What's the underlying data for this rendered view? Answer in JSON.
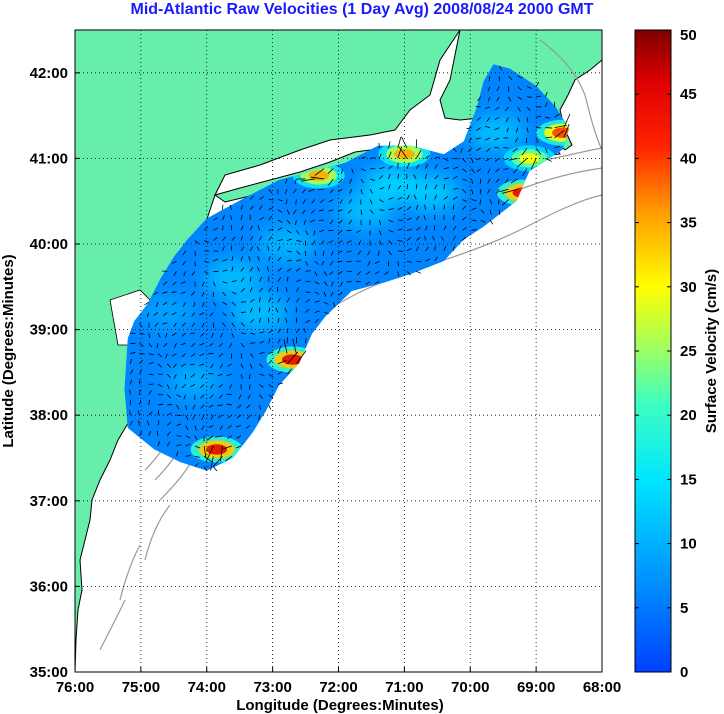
{
  "title": "Mid-Atlantic Raw Velocities (1 Day Avg) 2008/08/24 2000 GMT",
  "xlabel": "Longitude (Degrees:Minutes)",
  "ylabel": "Latitude (Degrees:Minutes)",
  "x_ticks": [
    {
      "lon": -76,
      "label": "76:00"
    },
    {
      "lon": -75,
      "label": "75:00"
    },
    {
      "lon": -74,
      "label": "74:00"
    },
    {
      "lon": -73,
      "label": "73:00"
    },
    {
      "lon": -72,
      "label": "72:00"
    },
    {
      "lon": -71,
      "label": "71:00"
    },
    {
      "lon": -70,
      "label": "70:00"
    },
    {
      "lon": -69,
      "label": "69:00"
    },
    {
      "lon": -68,
      "label": "68:00"
    }
  ],
  "y_ticks": [
    {
      "lat": 35,
      "label": "35:00"
    },
    {
      "lat": 36,
      "label": "36:00"
    },
    {
      "lat": 37,
      "label": "37:00"
    },
    {
      "lat": 38,
      "label": "38:00"
    },
    {
      "lat": 39,
      "label": "39:00"
    },
    {
      "lat": 40,
      "label": "40:00"
    },
    {
      "lat": 41,
      "label": "41:00"
    },
    {
      "lat": 42,
      "label": "42:00"
    }
  ],
  "colorbar": {
    "label": "Surface Velocity (cm/s)",
    "min": 0,
    "max": 50,
    "ticks": [
      {
        "value": 0,
        "label": "0"
      },
      {
        "value": 5,
        "label": "5"
      },
      {
        "value": 10,
        "label": "10"
      },
      {
        "value": 15,
        "label": "15"
      },
      {
        "value": 20,
        "label": "20"
      },
      {
        "value": 25,
        "label": "25"
      },
      {
        "value": 30,
        "label": "30"
      },
      {
        "value": 35,
        "label": "35"
      },
      {
        "value": 40,
        "label": "40"
      },
      {
        "value": 45,
        "label": "45"
      },
      {
        "value": 50,
        "label": "50"
      }
    ],
    "colormap": "jet"
  },
  "map": {
    "lon_range": [
      -76,
      -68
    ],
    "lat_range": [
      35,
      42.5
    ],
    "grid": "dotted",
    "land_color": "#66eeaa",
    "water_color": "#ffffff",
    "bathymetry_color": "#999999",
    "arrow_color": "#000000"
  },
  "chart_data": {
    "type": "heatmap",
    "quantity": "surface current speed (cm/s) with velocity vectors",
    "xlim": [
      -76,
      -68
    ],
    "ylim": [
      35,
      42.5
    ],
    "clim": [
      0,
      50
    ],
    "hotspots": [
      {
        "lon": -73.85,
        "lat": 37.6,
        "speed": 45
      },
      {
        "lon": -72.7,
        "lat": 38.65,
        "speed": 45
      },
      {
        "lon": -72.3,
        "lat": 40.8,
        "speed": 35
      },
      {
        "lon": -71.0,
        "lat": 41.05,
        "speed": 35
      },
      {
        "lon": -69.2,
        "lat": 40.6,
        "speed": 45
      },
      {
        "lon": -68.6,
        "lat": 41.3,
        "speed": 40
      },
      {
        "lon": -69.1,
        "lat": 41.0,
        "speed": 30
      }
    ],
    "typical_speed": 6
  }
}
